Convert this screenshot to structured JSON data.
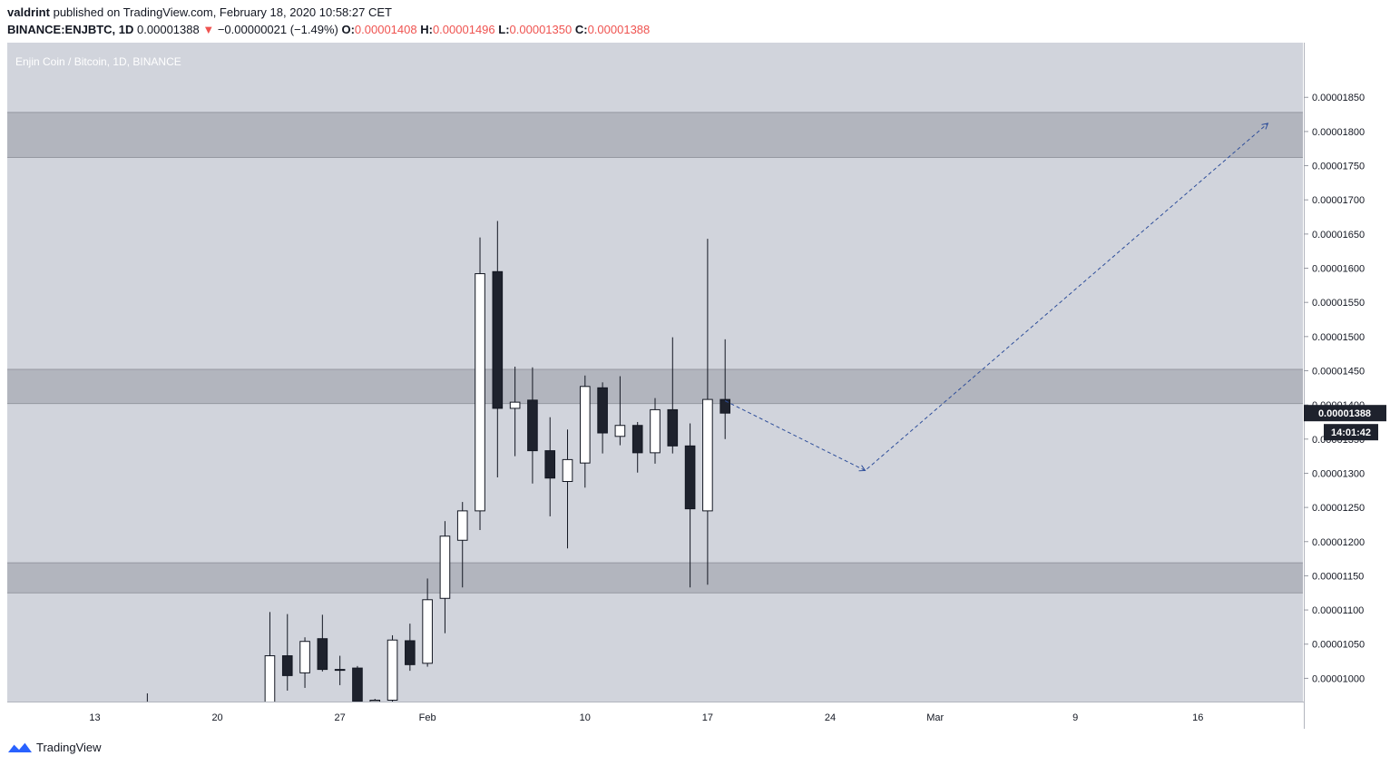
{
  "header": {
    "author": "valdrint",
    "published_text": "published on TradingView.com, February 18, 2020 10:58:27 CET",
    "symbol": "BINANCE:ENJBTC, 1D",
    "last": "0.00001388",
    "change_arrow": "▼",
    "change": "−0.00000021 (−1.49%)",
    "o_label": "O:",
    "o_value": "0.00001408",
    "h_label": "H:",
    "h_value": "0.00001496",
    "l_label": "L:",
    "l_value": "0.00001350",
    "c_label": "C:",
    "c_value": "0.00001388"
  },
  "chart_data": {
    "type": "candlestick",
    "title": "Enjin Coin / Bitcoin, 1D, BINANCE",
    "ylim": [
      9.66e-06,
      1.93e-05
    ],
    "x_domain": [
      "2020-01-08",
      "2020-03-22"
    ],
    "y_ticks": [
      "0.00001000",
      "0.00001050",
      "0.00001100",
      "0.00001150",
      "0.00001200",
      "0.00001250",
      "0.00001300",
      "0.00001350",
      "0.00001400",
      "0.00001450",
      "0.00001500",
      "0.00001550",
      "0.00001600",
      "0.00001650",
      "0.00001700",
      "0.00001750",
      "0.00001800",
      "0.00001850"
    ],
    "y_tick_values": [
      1e-05,
      1.05e-05,
      1.1e-05,
      1.15e-05,
      1.2e-05,
      1.25e-05,
      1.3e-05,
      1.35e-05,
      1.4e-05,
      1.45e-05,
      1.5e-05,
      1.55e-05,
      1.6e-05,
      1.65e-05,
      1.7e-05,
      1.75e-05,
      1.8e-05,
      1.85e-05
    ],
    "x_ticks": [
      {
        "label": "13",
        "date": "2020-01-13"
      },
      {
        "label": "20",
        "date": "2020-01-20"
      },
      {
        "label": "27",
        "date": "2020-01-27"
      },
      {
        "label": "Feb",
        "date": "2020-02-01"
      },
      {
        "label": "10",
        "date": "2020-02-10"
      },
      {
        "label": "17",
        "date": "2020-02-17"
      },
      {
        "label": "24",
        "date": "2020-02-24"
      },
      {
        "label": "Mar",
        "date": "2020-03-01"
      },
      {
        "label": "9",
        "date": "2020-03-09"
      },
      {
        "label": "16",
        "date": "2020-03-16"
      }
    ],
    "candles": [
      {
        "date": "2020-01-16",
        "open": 9.62e-06,
        "high": 9.78e-06,
        "low": 9.55e-06,
        "close": 9.6e-06
      },
      {
        "date": "2020-01-23",
        "open": 9.6e-06,
        "high": 1.097e-05,
        "low": 9.55e-06,
        "close": 1.033e-05
      },
      {
        "date": "2020-01-24",
        "open": 1.033e-05,
        "high": 1.094e-05,
        "low": 9.82e-06,
        "close": 1.004e-05
      },
      {
        "date": "2020-01-25",
        "open": 1.008e-05,
        "high": 1.06e-05,
        "low": 9.86e-06,
        "close": 1.054e-05
      },
      {
        "date": "2020-01-26",
        "open": 1.058e-05,
        "high": 1.093e-05,
        "low": 1.01e-05,
        "close": 1.013e-05
      },
      {
        "date": "2020-01-27",
        "open": 1.013e-05,
        "high": 1.033e-05,
        "low": 9.9e-06,
        "close": 1.012e-05
      },
      {
        "date": "2020-01-28",
        "open": 1.015e-05,
        "high": 1.018e-05,
        "low": 9.65e-06,
        "close": 9.66e-06
      },
      {
        "date": "2020-01-29",
        "open": 9.66e-06,
        "high": 9.7e-06,
        "low": 9.62e-06,
        "close": 9.68e-06
      },
      {
        "date": "2020-01-30",
        "open": 9.68e-06,
        "high": 1.063e-05,
        "low": 9.64e-06,
        "close": 1.056e-05
      },
      {
        "date": "2020-01-31",
        "open": 1.055e-05,
        "high": 1.08e-05,
        "low": 1.011e-05,
        "close": 1.02e-05
      },
      {
        "date": "2020-02-01",
        "open": 1.022e-05,
        "high": 1.146e-05,
        "low": 1.017e-05,
        "close": 1.115e-05
      },
      {
        "date": "2020-02-02",
        "open": 1.117e-05,
        "high": 1.23e-05,
        "low": 1.066e-05,
        "close": 1.208e-05
      },
      {
        "date": "2020-02-03",
        "open": 1.202e-05,
        "high": 1.258e-05,
        "low": 1.133e-05,
        "close": 1.245e-05
      },
      {
        "date": "2020-02-04",
        "open": 1.245e-05,
        "high": 1.645e-05,
        "low": 1.217e-05,
        "close": 1.592e-05
      },
      {
        "date": "2020-02-05",
        "open": 1.595e-05,
        "high": 1.669e-05,
        "low": 1.294e-05,
        "close": 1.395e-05
      },
      {
        "date": "2020-02-06",
        "open": 1.395e-05,
        "high": 1.456e-05,
        "low": 1.325e-05,
        "close": 1.404e-05
      },
      {
        "date": "2020-02-07",
        "open": 1.407e-05,
        "high": 1.455e-05,
        "low": 1.285e-05,
        "close": 1.333e-05
      },
      {
        "date": "2020-02-08",
        "open": 1.333e-05,
        "high": 1.382e-05,
        "low": 1.237e-05,
        "close": 1.293e-05
      },
      {
        "date": "2020-02-09",
        "open": 1.288e-05,
        "high": 1.364e-05,
        "low": 1.19e-05,
        "close": 1.32e-05
      },
      {
        "date": "2020-02-10",
        "open": 1.315e-05,
        "high": 1.443e-05,
        "low": 1.279e-05,
        "close": 1.427e-05
      },
      {
        "date": "2020-02-11",
        "open": 1.425e-05,
        "high": 1.433e-05,
        "low": 1.329e-05,
        "close": 1.359e-05
      },
      {
        "date": "2020-02-12",
        "open": 1.354e-05,
        "high": 1.442e-05,
        "low": 1.341e-05,
        "close": 1.37e-05
      },
      {
        "date": "2020-02-13",
        "open": 1.37e-05,
        "high": 1.375e-05,
        "low": 1.301e-05,
        "close": 1.33e-05
      },
      {
        "date": "2020-02-14",
        "open": 1.33e-05,
        "high": 1.41e-05,
        "low": 1.314e-05,
        "close": 1.393e-05
      },
      {
        "date": "2020-02-15",
        "open": 1.393e-05,
        "high": 1.499e-05,
        "low": 1.329e-05,
        "close": 1.34e-05
      },
      {
        "date": "2020-02-16",
        "open": 1.34e-05,
        "high": 1.373e-05,
        "low": 1.133e-05,
        "close": 1.248e-05
      },
      {
        "date": "2020-02-17",
        "open": 1.245e-05,
        "high": 1.643e-05,
        "low": 1.137e-05,
        "close": 1.408e-05
      },
      {
        "date": "2020-02-18",
        "open": 1.408e-05,
        "high": 1.496e-05,
        "low": 1.35e-05,
        "close": 1.388e-05
      }
    ],
    "zones": [
      {
        "from": 1.762e-05,
        "to": 1.828e-05
      },
      {
        "from": 1.402e-05,
        "to": 1.452e-05
      },
      {
        "from": 1.125e-05,
        "to": 1.169e-05
      }
    ],
    "projection": [
      {
        "date": "2020-02-18",
        "value": 1.406e-05
      },
      {
        "date": "2020-02-26",
        "value": 1.304e-05
      },
      {
        "date": "2020-03-20",
        "value": 1.812e-05
      }
    ],
    "last_price_label": "0.00001388",
    "last_price_value": 1.388e-05,
    "countdown_label": "14:01:42"
  },
  "colors": {
    "plot_bg": "#d1d4dc",
    "zone": "#b2b5be",
    "up_body": "#ffffff",
    "down_body": "#1e222d",
    "wick": "#131722",
    "projection": "#2e4e9a",
    "down_text": "#ef5350",
    "brand": "#2962ff"
  },
  "footer": {
    "brand": "TradingView"
  }
}
